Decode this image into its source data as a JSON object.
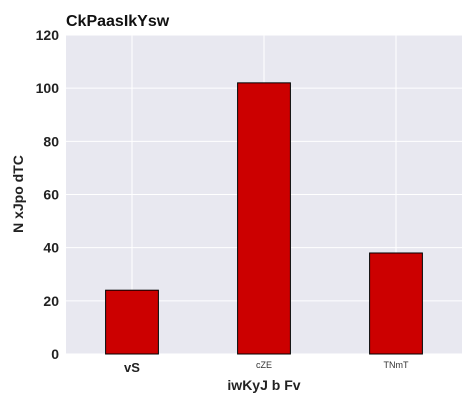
{
  "chart_data": {
    "type": "bar",
    "title": "CkPaasIkYsw",
    "xlabel": "iwKyJ b Fv",
    "ylabel": "N xJpo dTC",
    "categories": [
      "vS",
      "cZE",
      "TNmT"
    ],
    "values": [
      24,
      102,
      38
    ],
    "ylim": [
      0,
      120
    ],
    "yticks": [
      0,
      20,
      40,
      60,
      80,
      100,
      120
    ],
    "grid": true,
    "legend": "none",
    "colors": {
      "bar": "#cc0000",
      "bar_edge": "#000000",
      "plot_background": "#e8e8f0",
      "grid": "#ffffff"
    }
  }
}
